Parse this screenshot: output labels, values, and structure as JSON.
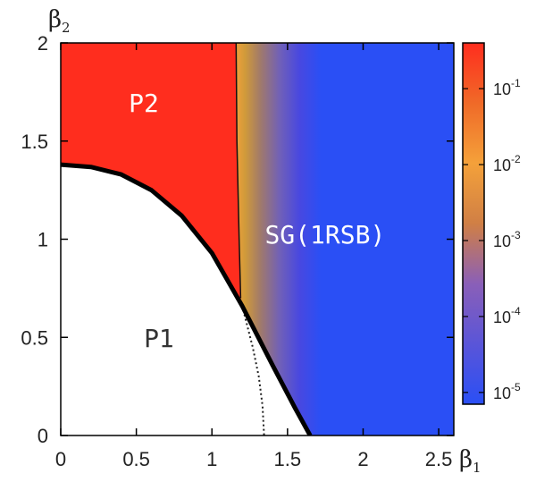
{
  "chart_data": {
    "type": "heatmap",
    "title": "",
    "xlabel": "β",
    "xlabel_sub": "1",
    "ylabel": "β",
    "ylabel_sub": "2",
    "xlim": [
      0,
      2.6
    ],
    "ylim": [
      0,
      2
    ],
    "x_ticks": [
      {
        "value": 0,
        "label": "0"
      },
      {
        "value": 0.5,
        "label": "0.5"
      },
      {
        "value": 1,
        "label": "1"
      },
      {
        "value": 1.5,
        "label": "1.5"
      },
      {
        "value": 2,
        "label": "2"
      },
      {
        "value": 2.5,
        "label": "2.5"
      }
    ],
    "y_ticks": [
      {
        "value": 0,
        "label": "0"
      },
      {
        "value": 0.5,
        "label": "0.5"
      },
      {
        "value": 1,
        "label": "1"
      },
      {
        "value": 1.5,
        "label": "1.5"
      },
      {
        "value": 2,
        "label": "2"
      }
    ],
    "colorbar": {
      "scale": "log",
      "range": [
        7e-06,
        0.4
      ],
      "ticks": [
        {
          "value": 1e-05,
          "base": "10",
          "exp": "-5"
        },
        {
          "value": 0.0001,
          "base": "10",
          "exp": "-4"
        },
        {
          "value": 0.001,
          "base": "10",
          "exp": "-3"
        },
        {
          "value": 0.01,
          "base": "10",
          "exp": "-2"
        },
        {
          "value": 0.1,
          "base": "10",
          "exp": "-1"
        }
      ],
      "colors": [
        "#2a4ff5",
        "#5a55d8",
        "#8a5fb8",
        "#d07f45",
        "#f4a13a",
        "#f06a28",
        "#ff2d1e"
      ]
    },
    "gradient_x": [
      1.15,
      1.22,
      1.32,
      1.45,
      1.58,
      1.72
    ],
    "gradient_colors": [
      "#f4a13a",
      "#d09a3a",
      "#a17a6a",
      "#7060b8",
      "#4848e0",
      "#2a4ff5"
    ],
    "regions": [
      {
        "label": "P2",
        "x": 0.45,
        "y": 1.65,
        "color": "#ffffff"
      },
      {
        "label": "SG(1RSB)",
        "x": 1.35,
        "y": 0.98,
        "color": "#ffffff"
      },
      {
        "label": "P1",
        "x": 0.55,
        "y": 0.45,
        "color": "#333333"
      }
    ],
    "boundaries": {
      "p1_boundary": [
        [
          0,
          1.38
        ],
        [
          0.2,
          1.368
        ],
        [
          0.4,
          1.33
        ],
        [
          0.6,
          1.25
        ],
        [
          0.8,
          1.12
        ],
        [
          1.0,
          0.93
        ],
        [
          1.2,
          0.66
        ],
        [
          1.4,
          0.36
        ],
        [
          1.55,
          0.14
        ],
        [
          1.65,
          0.0
        ]
      ],
      "p2_sg_boundary": [
        [
          1.19,
          0.7
        ],
        [
          1.18,
          1.0
        ],
        [
          1.165,
          1.5
        ],
        [
          1.16,
          2.0
        ]
      ],
      "dotted_extension": [
        [
          1.2,
          0.66
        ],
        [
          1.27,
          0.45
        ],
        [
          1.31,
          0.3
        ],
        [
          1.335,
          0.15
        ],
        [
          1.345,
          0.0
        ]
      ]
    }
  }
}
